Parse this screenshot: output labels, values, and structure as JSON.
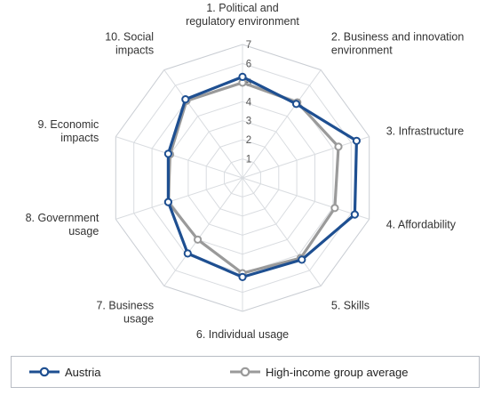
{
  "chart_data": {
    "type": "radar",
    "axes": [
      [
        "1. Political and",
        "regulatory environment"
      ],
      [
        "2. Business and innovation",
        "environment"
      ],
      [
        "3. Infrastructure"
      ],
      [
        "4. Affordability"
      ],
      [
        "5. Skills"
      ],
      [
        "6. Individual usage"
      ],
      [
        "7. Business",
        "usage"
      ],
      [
        "8. Government",
        "usage"
      ],
      [
        "9. Economic",
        "impacts"
      ],
      [
        "10. Social",
        "impacts"
      ]
    ],
    "ticks": [
      "1",
      "2",
      "3",
      "4",
      "5",
      "6",
      "7"
    ],
    "range": [
      0,
      7
    ],
    "series": [
      {
        "name": "Austria",
        "color": "#1e4f91",
        "values": [
          5.3,
          4.8,
          6.3,
          6.2,
          5.3,
          5.2,
          4.9,
          4.1,
          4.1,
          5.1
        ]
      },
      {
        "name": "High-income group average",
        "color": "#9a9a9a",
        "values": [
          5.0,
          4.9,
          5.3,
          5.1,
          5.2,
          5.0,
          4.0,
          4.1,
          4.0,
          5.0
        ]
      }
    ],
    "legend_position": "bottom"
  }
}
